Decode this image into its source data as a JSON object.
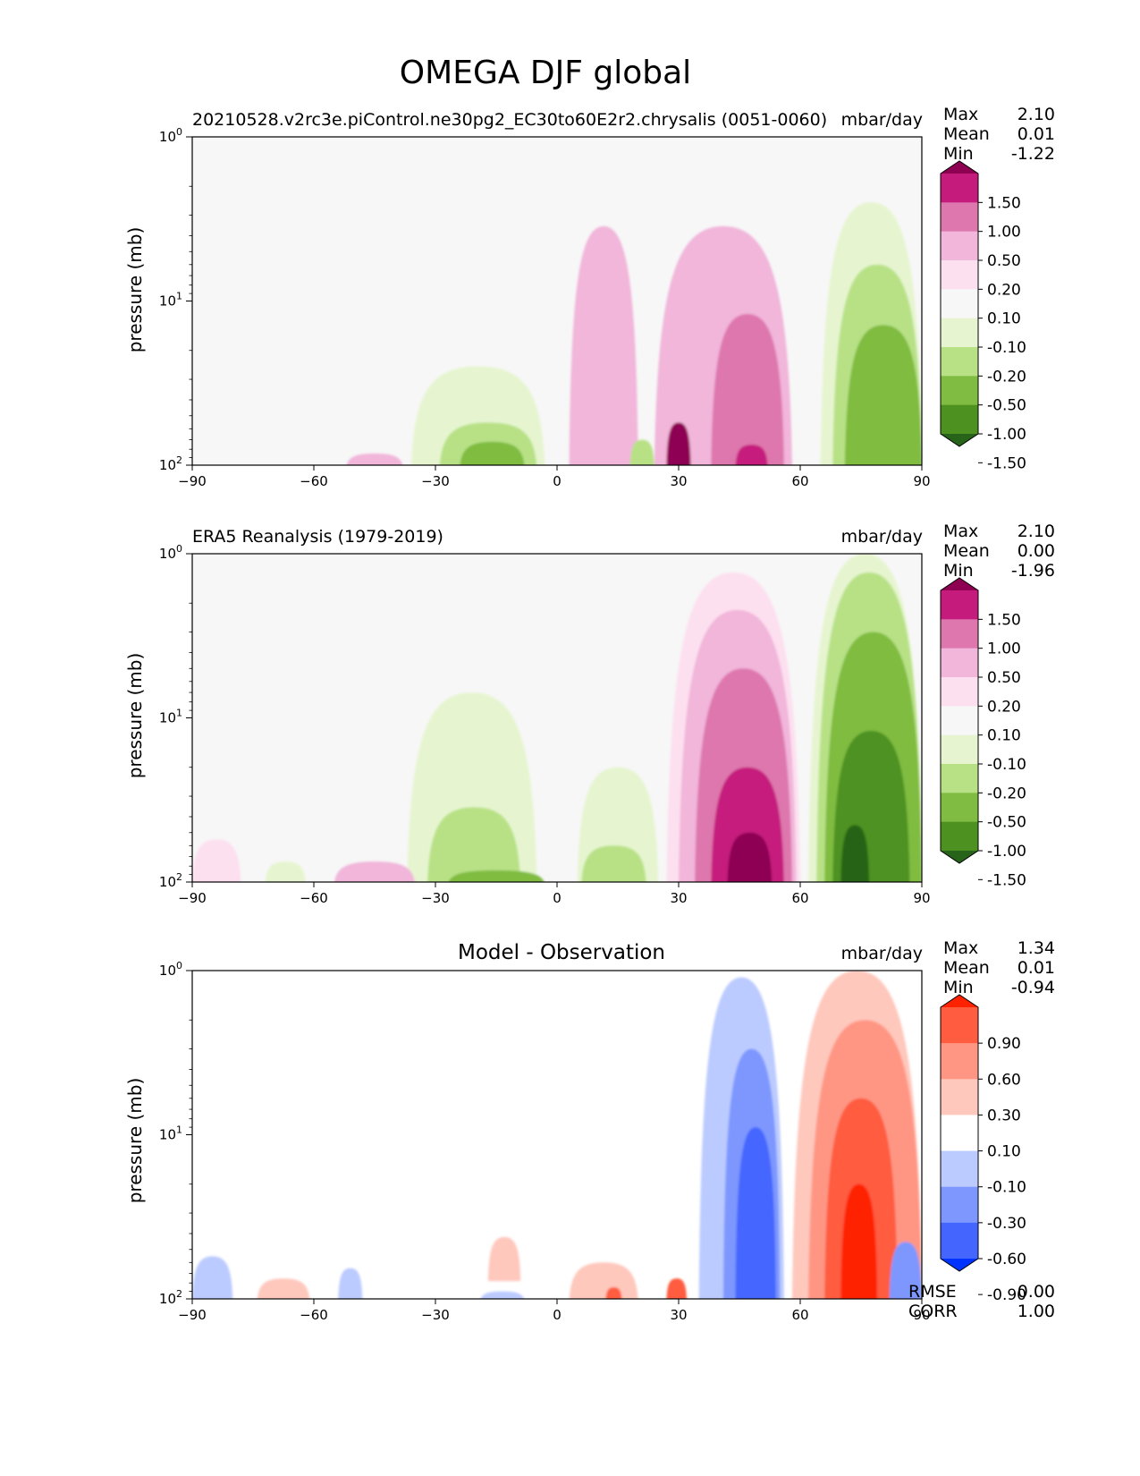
{
  "figure_title": "OMEGA DJF global",
  "chart_data": [
    {
      "type": "heatmap",
      "panel": "model",
      "title": "20210528.v2rc3e.piControl.ne30pg2_EC30to60E2r2.chrysalis (0051-0060)",
      "units": "mbar/day",
      "xlabel": "",
      "ylabel": "pressure (mb)",
      "xlim": [
        -90,
        90
      ],
      "ylim": [
        100,
        1
      ],
      "yscale": "log",
      "x_ticks": [
        "−90",
        "−60",
        "−30",
        "0",
        "30",
        "60",
        "90"
      ],
      "stats": {
        "labels": [
          "Max",
          "Mean",
          "Min"
        ],
        "values": [
          "2.10",
          "0.01",
          "-1.22"
        ]
      },
      "colorbar": {
        "labels": [
          "1.50",
          "1.00",
          "0.50",
          "0.20",
          "0.10",
          "-0.10",
          "-0.20",
          "-0.50",
          "-1.00",
          "-1.50"
        ],
        "colors": [
          "#8e0152",
          "#c51b7d",
          "#de77ae",
          "#f1b6da",
          "#fde0ef",
          "#f7f7f7",
          "#e6f5d0",
          "#b8e186",
          "#7fbc41",
          "#4d9221",
          "#276419"
        ]
      },
      "features": [
        {
          "kind": "blob",
          "x_range": [
            3,
            20
          ],
          "p_top": 3.5,
          "p_bottom": 100,
          "value": 0.3
        },
        {
          "kind": "blob",
          "x_range": [
            24,
            58
          ],
          "p_top": 3.5,
          "p_bottom": 100,
          "value": 0.35
        },
        {
          "kind": "blob",
          "x_range": [
            38,
            56
          ],
          "p_top": 12,
          "p_bottom": 100,
          "value": 0.7
        },
        {
          "kind": "blob",
          "x_range": [
            27,
            33
          ],
          "p_top": 55,
          "p_bottom": 100,
          "value": 1.6
        },
        {
          "kind": "blob",
          "x_range": [
            44,
            52
          ],
          "p_top": 75,
          "p_bottom": 100,
          "value": 1.2
        },
        {
          "kind": "blob",
          "x_range": [
            -36,
            -3
          ],
          "p_top": 25,
          "p_bottom": 100,
          "value": -0.15
        },
        {
          "kind": "blob",
          "x_range": [
            -29,
            -5
          ],
          "p_top": 55,
          "p_bottom": 100,
          "value": -0.35
        },
        {
          "kind": "blob",
          "x_range": [
            -24,
            -8
          ],
          "p_top": 72,
          "p_bottom": 100,
          "value": -0.7
        },
        {
          "kind": "blob",
          "x_range": [
            65,
            90
          ],
          "p_top": 2.5,
          "p_bottom": 100,
          "value": -0.15
        },
        {
          "kind": "blob",
          "x_range": [
            68,
            90
          ],
          "p_top": 6,
          "p_bottom": 100,
          "value": -0.4
        },
        {
          "kind": "blob",
          "x_range": [
            71,
            90
          ],
          "p_top": 14,
          "p_bottom": 100,
          "value": -0.8
        },
        {
          "kind": "blob",
          "x_range": [
            -52,
            -38
          ],
          "p_top": 85,
          "p_bottom": 100,
          "value": 0.3
        },
        {
          "kind": "blob",
          "x_range": [
            18,
            24
          ],
          "p_top": 70,
          "p_bottom": 100,
          "value": -0.3
        }
      ]
    },
    {
      "type": "heatmap",
      "panel": "observation",
      "title": "ERA5 Reanalysis (1979-2019)",
      "units": "mbar/day",
      "xlabel": "",
      "ylabel": "pressure (mb)",
      "xlim": [
        -90,
        90
      ],
      "ylim": [
        100,
        1
      ],
      "yscale": "log",
      "x_ticks": [
        "−90",
        "−60",
        "−30",
        "0",
        "30",
        "60",
        "90"
      ],
      "stats": {
        "labels": [
          "Max",
          "Mean",
          "Min"
        ],
        "values": [
          "2.10",
          "0.00",
          "-1.96"
        ]
      },
      "colorbar": {
        "labels": [
          "1.50",
          "1.00",
          "0.50",
          "0.20",
          "0.10",
          "-0.10",
          "-0.20",
          "-0.50",
          "-1.00",
          "-1.50"
        ],
        "colors": [
          "#8e0152",
          "#c51b7d",
          "#de77ae",
          "#f1b6da",
          "#fde0ef",
          "#f7f7f7",
          "#e6f5d0",
          "#b8e186",
          "#7fbc41",
          "#4d9221",
          "#276419"
        ]
      },
      "features": [
        {
          "kind": "blob",
          "x_range": [
            27,
            60
          ],
          "p_top": 1.3,
          "p_bottom": 100,
          "value": 0.15
        },
        {
          "kind": "blob",
          "x_range": [
            30,
            59
          ],
          "p_top": 2.2,
          "p_bottom": 100,
          "value": 0.35
        },
        {
          "kind": "blob",
          "x_range": [
            34,
            58
          ],
          "p_top": 5,
          "p_bottom": 100,
          "value": 0.7
        },
        {
          "kind": "blob",
          "x_range": [
            38,
            56
          ],
          "p_top": 20,
          "p_bottom": 100,
          "value": 1.2
        },
        {
          "kind": "blob",
          "x_range": [
            42,
            53
          ],
          "p_top": 50,
          "p_bottom": 100,
          "value": 1.8
        },
        {
          "kind": "blob",
          "x_range": [
            -37,
            -5
          ],
          "p_top": 7,
          "p_bottom": 100,
          "value": -0.15
        },
        {
          "kind": "blob",
          "x_range": [
            -32,
            -9
          ],
          "p_top": 35,
          "p_bottom": 100,
          "value": -0.35
        },
        {
          "kind": "blob",
          "x_range": [
            -27,
            -3
          ],
          "p_top": 85,
          "p_bottom": 100,
          "value": -0.7
        },
        {
          "kind": "blob",
          "x_range": [
            5,
            25
          ],
          "p_top": 20,
          "p_bottom": 100,
          "value": -0.15
        },
        {
          "kind": "blob",
          "x_range": [
            6,
            22
          ],
          "p_top": 60,
          "p_bottom": 100,
          "value": -0.35
        },
        {
          "kind": "blob",
          "x_range": [
            62,
            90
          ],
          "p_top": 1,
          "p_bottom": 100,
          "value": -0.15
        },
        {
          "kind": "blob",
          "x_range": [
            64,
            90
          ],
          "p_top": 1.3,
          "p_bottom": 100,
          "value": -0.35
        },
        {
          "kind": "blob",
          "x_range": [
            66,
            90
          ],
          "p_top": 3,
          "p_bottom": 100,
          "value": -0.7
        },
        {
          "kind": "blob",
          "x_range": [
            68,
            87
          ],
          "p_top": 12,
          "p_bottom": 100,
          "value": -1.2
        },
        {
          "kind": "blob",
          "x_range": [
            70,
            77
          ],
          "p_top": 45,
          "p_bottom": 100,
          "value": -1.8
        },
        {
          "kind": "blob",
          "x_range": [
            -90,
            -78
          ],
          "p_top": 55,
          "p_bottom": 100,
          "value": 0.15
        },
        {
          "kind": "blob",
          "x_range": [
            -55,
            -35
          ],
          "p_top": 75,
          "p_bottom": 100,
          "value": 0.3
        },
        {
          "kind": "blob",
          "x_range": [
            -72,
            -62
          ],
          "p_top": 75,
          "p_bottom": 100,
          "value": -0.15
        }
      ]
    },
    {
      "type": "heatmap",
      "panel": "difference",
      "title": "Model - Observation",
      "units": "mbar/day",
      "xlabel": "",
      "ylabel": "pressure (mb)",
      "xlim": [
        -90,
        90
      ],
      "ylim": [
        100,
        1
      ],
      "yscale": "log",
      "x_ticks": [
        "−90",
        "−60",
        "−30",
        "0",
        "30",
        "60",
        "90"
      ],
      "stats": {
        "labels": [
          "Max",
          "Mean",
          "Min"
        ],
        "values": [
          "1.34",
          "0.01",
          "-0.94"
        ]
      },
      "extra_stats": {
        "labels": [
          "RMSE",
          "CORR"
        ],
        "values": [
          "0.00",
          "1.00"
        ]
      },
      "colorbar": {
        "labels": [
          "0.90",
          "0.60",
          "0.30",
          "0.10",
          "-0.10",
          "-0.30",
          "-0.60",
          "-0.90"
        ],
        "colors": [
          "#ff2200",
          "#ff5c40",
          "#ff9684",
          "#ffc8bd",
          "#ffffff",
          "#bccbff",
          "#7d97ff",
          "#4466ff",
          "#0033ff"
        ]
      },
      "features": [
        {
          "kind": "blob",
          "x_range": [
            35,
            56
          ],
          "p_top": 1.1,
          "p_bottom": 100,
          "value": -0.2
        },
        {
          "kind": "blob",
          "x_range": [
            41,
            55
          ],
          "p_top": 3,
          "p_bottom": 100,
          "value": -0.45
        },
        {
          "kind": "blob",
          "x_range": [
            44,
            54
          ],
          "p_top": 9,
          "p_bottom": 100,
          "value": -0.75
        },
        {
          "kind": "blob",
          "x_range": [
            58,
            90
          ],
          "p_top": 1,
          "p_bottom": 100,
          "value": 0.2
        },
        {
          "kind": "blob",
          "x_range": [
            62,
            90
          ],
          "p_top": 2,
          "p_bottom": 100,
          "value": 0.45
        },
        {
          "kind": "blob",
          "x_range": [
            66,
            84
          ],
          "p_top": 6,
          "p_bottom": 100,
          "value": 0.75
        },
        {
          "kind": "blob",
          "x_range": [
            70,
            79
          ],
          "p_top": 20,
          "p_bottom": 100,
          "value": 1.1
        },
        {
          "kind": "blob",
          "x_range": [
            3,
            20
          ],
          "p_top": 60,
          "p_bottom": 100,
          "value": 0.2
        },
        {
          "kind": "blob",
          "x_range": [
            12,
            16
          ],
          "p_top": 85,
          "p_bottom": 100,
          "value": 0.75
        },
        {
          "kind": "blob",
          "x_range": [
            27,
            32
          ],
          "p_top": 75,
          "p_bottom": 100,
          "value": 0.75
        },
        {
          "kind": "blob",
          "x_range": [
            -90,
            -80
          ],
          "p_top": 55,
          "p_bottom": 100,
          "value": -0.2
        },
        {
          "kind": "blob",
          "x_range": [
            -74,
            -61
          ],
          "p_top": 75,
          "p_bottom": 100,
          "value": 0.2
        },
        {
          "kind": "blob",
          "x_range": [
            -54,
            -48
          ],
          "p_top": 65,
          "p_bottom": 100,
          "value": -0.2
        },
        {
          "kind": "blob",
          "x_range": [
            -17,
            -9
          ],
          "p_top": 42,
          "p_bottom": 75,
          "value": 0.2
        },
        {
          "kind": "blob",
          "x_range": [
            -19,
            -8
          ],
          "p_top": 90,
          "p_bottom": 100,
          "value": -0.2
        },
        {
          "kind": "blob",
          "x_range": [
            82,
            90
          ],
          "p_top": 45,
          "p_bottom": 100,
          "value": -0.45
        }
      ]
    }
  ]
}
